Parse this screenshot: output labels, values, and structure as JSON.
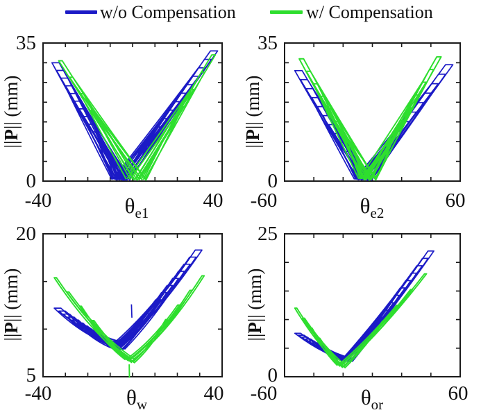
{
  "legend": {
    "position": "top",
    "items": [
      {
        "label": "w/o Compensation",
        "color": "#1b1ac6"
      },
      {
        "label": "w/ Compensation",
        "color": "#2ede2e"
      }
    ]
  },
  "ylabel": {
    "pre": "||",
    "bold": "P",
    "post": "|| (mm)"
  },
  "chart_data": {
    "type": "line",
    "title": "",
    "grid": false,
    "legend_position": "top",
    "frame_color": "#1a1a1a",
    "plots": [
      {
        "id": "theta_e1",
        "xlabel_base": "θ",
        "xlabel_sub": "e1",
        "xlim": [
          -40,
          40
        ],
        "ylim": [
          0,
          35
        ],
        "xtick_step": 10,
        "ytick_step": 5,
        "xtick_left": "-40",
        "xtick_right": "40",
        "ytick_bottom": "0",
        "ytick_top": "35",
        "series": [
          {
            "name": "w/o Compensation",
            "color": "#1b1ac6",
            "lw": 1.7,
            "vertex": [
              -5,
              0.2
            ],
            "left_tip": [
              -36,
              30
            ],
            "right_tip": [
              38,
              33
            ],
            "loops": 14,
            "min_frac": 0.15,
            "band": 4,
            "cap": 3.2,
            "sag": 0.4,
            "jitter": 2.4,
            "vjit": 0.3
          },
          {
            "name": "w/ Compensation",
            "color": "#2ede2e",
            "lw": 1.9,
            "vertex": [
              2,
              0.2
            ],
            "left_tip": [
              -33,
              30.5
            ],
            "right_tip": [
              37,
              32
            ],
            "loops": 5,
            "min_frac": 0.45,
            "band": 2,
            "cap": 1.6,
            "sag": 0.3,
            "jitter": 4,
            "vjit": 0.4
          }
        ],
        "extras": []
      },
      {
        "id": "theta_e2",
        "xlabel_base": "θ",
        "xlabel_sub": "e2",
        "xlim": [
          -60,
          60
        ],
        "ylim": [
          0,
          35
        ],
        "xtick_step": 20,
        "ytick_step": 5,
        "xtick_left": "-60",
        "xtick_right": "60",
        "ytick_bottom": "0",
        "ytick_top": "35",
        "series": [
          {
            "name": "w/o Compensation",
            "color": "#1b1ac6",
            "lw": 1.7,
            "vertex": [
              -6,
              0.2
            ],
            "left_tip": [
              -53,
              28
            ],
            "right_tip": [
              55,
              29.5
            ],
            "loops": 11,
            "min_frac": 0.18,
            "band": 7,
            "cap": 5,
            "sag": 0.4,
            "jitter": 3,
            "vjit": 0.3
          },
          {
            "name": "w/ Compensation",
            "color": "#2ede2e",
            "lw": 1.9,
            "vertex": [
              -3,
              0.2
            ],
            "left_tip": [
              -50,
              31
            ],
            "right_tip": [
              47,
              31.5
            ],
            "loops": 8,
            "min_frac": 0.28,
            "band": 4,
            "cap": 3,
            "sag": 0.3,
            "jitter": 4.5,
            "vjit": 0.5
          }
        ],
        "extras": []
      },
      {
        "id": "theta_w",
        "xlabel_base": "θ",
        "xlabel_sub": "w",
        "xlim": [
          -40,
          40
        ],
        "ylim": [
          5,
          20
        ],
        "xtick_step": 10,
        "ytick_step": 5,
        "xtick_left": "-40",
        "xtick_right": "40",
        "ytick_bottom": "5",
        "ytick_top": "20",
        "series": [
          {
            "name": "w/o Compensation",
            "color": "#1b1ac6",
            "lw": 1.7,
            "vertex": [
              -6,
              7.8
            ],
            "left_tip": [
              -35,
              12.2
            ],
            "right_tip": [
              31,
              18.3
            ],
            "loops": 12,
            "min_frac": 0.22,
            "band": 3,
            "cap": 3,
            "sag": 1.1,
            "jitter": 1.6,
            "vjit": 0.8
          },
          {
            "name": "w/ Compensation",
            "color": "#2ede2e",
            "lw": 1.9,
            "vertex": [
              -1,
              6.4
            ],
            "left_tip": [
              -35,
              15.4
            ],
            "right_tip": [
              32,
              15.6
            ],
            "loops": 4,
            "min_frac": 0.5,
            "band": 1.4,
            "cap": 1,
            "sag": 1.5,
            "jitter": 1.6,
            "vjit": 0.5
          }
        ],
        "extras": [
          {
            "color": "#1b1ac6",
            "lw": 1.7,
            "segments": [
              [
                -0.5,
                12.6,
                -0.3,
                11.2
              ]
            ]
          },
          {
            "color": "#2ede2e",
            "lw": 1.9,
            "segments": [
              [
                -1.5,
                6.3,
                -1.4,
                4.9
              ]
            ]
          }
        ]
      },
      {
        "id": "theta_or",
        "xlabel_base": "θ",
        "xlabel_sub": "or",
        "xlim": [
          -60,
          60
        ],
        "ylim": [
          0,
          25
        ],
        "xtick_step": 20,
        "ytick_step": 5,
        "xtick_left": "-60",
        "xtick_right": "60",
        "ytick_bottom": "0",
        "ytick_top": "25",
        "series": [
          {
            "name": "w/o Compensation",
            "color": "#1b1ac6",
            "lw": 1.7,
            "vertex": [
              -17,
              2.6
            ],
            "left_tip": [
              -53,
              7.6
            ],
            "right_tip": [
              42,
              22
            ],
            "loops": 13,
            "min_frac": 0.2,
            "band": 4,
            "cap": 4,
            "sag": 1.0,
            "jitter": 2,
            "vjit": 0.6
          },
          {
            "name": "w/ Compensation",
            "color": "#2ede2e",
            "lw": 1.9,
            "vertex": [
              -21,
              1.5
            ],
            "left_tip": [
              -53,
              12
            ],
            "right_tip": [
              37,
              18
            ],
            "loops": 4,
            "min_frac": 0.5,
            "band": 2,
            "cap": 1.4,
            "sag": 1.4,
            "jitter": 2,
            "vjit": 0.6
          }
        ],
        "extras": []
      }
    ]
  }
}
